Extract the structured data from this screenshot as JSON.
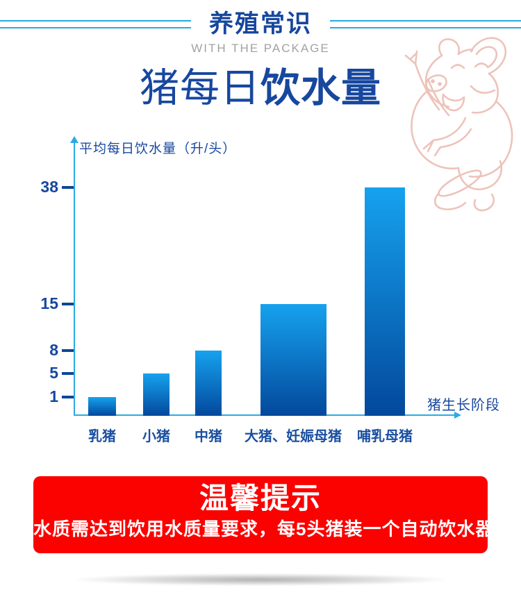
{
  "header": {
    "title": "养殖常识",
    "subtitle": "WITH THE PACKAGE"
  },
  "page_title": {
    "regular": "猪每日",
    "bold": "饮水量"
  },
  "chart_data": {
    "type": "bar",
    "title": "猪每日饮水量",
    "ylabel": "平均每日饮水量（升/头）",
    "xlabel": "猪生长阶段",
    "categories": [
      "乳猪",
      "小猪",
      "中猪",
      "大猪、妊娠母猪",
      "哺乳母猪"
    ],
    "values": [
      1,
      5,
      8,
      15,
      38
    ],
    "yticks": [
      1,
      5,
      8,
      15,
      38
    ],
    "ylim": [
      0,
      40
    ],
    "grid": false,
    "legend": false,
    "bar_gradient_top": "#16a2ee",
    "bar_gradient_bottom": "#03489c",
    "axis_color": "#2aabe3",
    "tick_color": "#0b4796",
    "label_color": "#17479e"
  },
  "notice": {
    "title": "温馨提示",
    "body": "水质需达到饮用水质量要求，每5头猪装一个自动饮水器",
    "background": "#fb0100",
    "text_color": "#ffffff"
  },
  "decor": {
    "pig_illustration": "laughing-pig-line-art",
    "pig_color": "#edc3ba",
    "header_line_color": "#29a9e0",
    "title_color": "#17479e",
    "subtitle_color": "#a2a2a2"
  }
}
